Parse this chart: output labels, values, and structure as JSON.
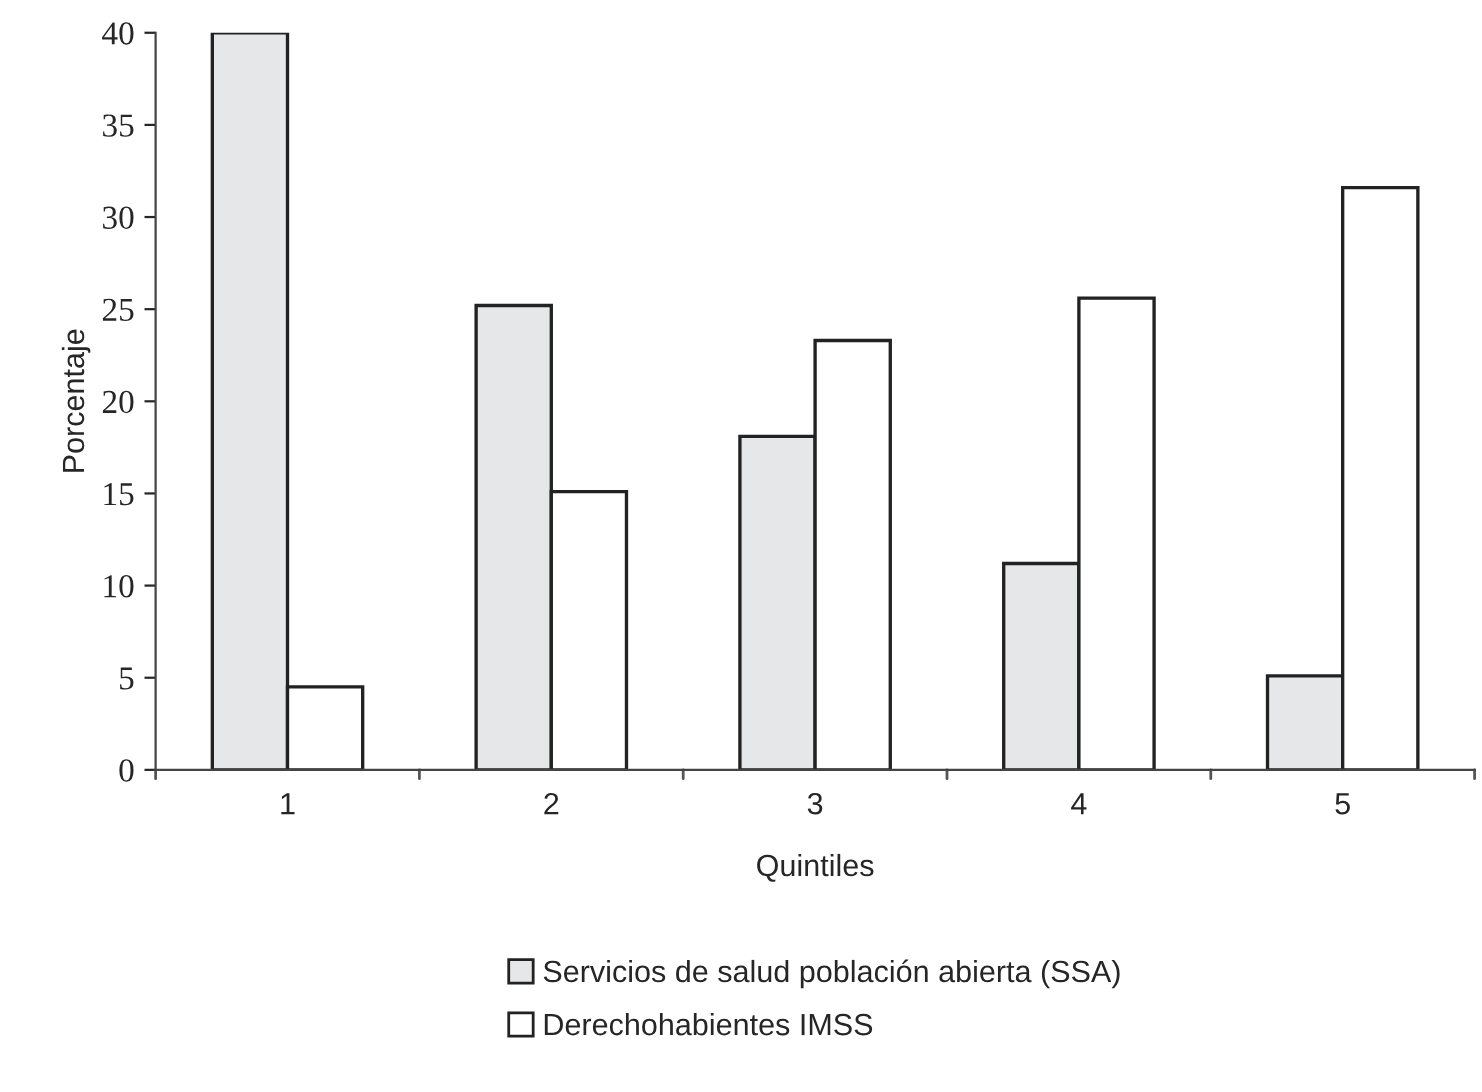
{
  "chart_data": {
    "type": "bar",
    "xlabel": "Quintiles",
    "ylabel": "Porcentaje",
    "categories": [
      "1",
      "2",
      "3",
      "4",
      "5"
    ],
    "series": [
      {
        "name": "Servicios de salud población abierta (SSA)",
        "color": "#e6e7e8",
        "values": [
          40,
          25.2,
          18.1,
          11.2,
          5.1
        ]
      },
      {
        "name": "Derechohabientes IMSS",
        "color": "#ffffff",
        "values": [
          4.5,
          15.1,
          23.3,
          25.6,
          31.6
        ]
      }
    ],
    "ylim": [
      0,
      40
    ],
    "yticks": [
      0,
      5,
      10,
      15,
      20,
      25,
      30,
      35,
      40
    ],
    "grid": false,
    "legend": "bottom"
  }
}
